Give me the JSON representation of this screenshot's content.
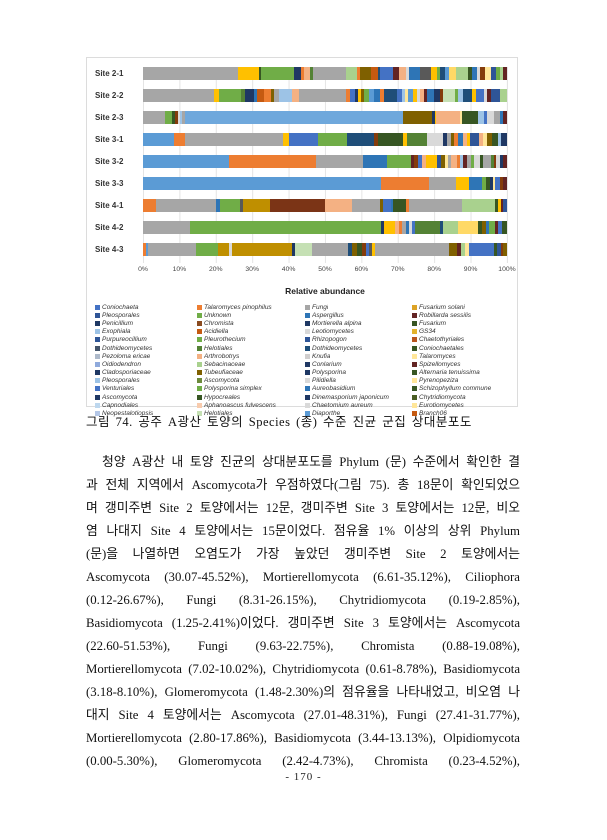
{
  "figure": {
    "caption": "그림 74. 공주 A광산 토양의 Species (종) 수준 진균 군집 상대분포도"
  },
  "chart_data": {
    "type": "bar",
    "orientation": "horizontal-stacked",
    "title": "",
    "xlabel": "Relative abundance",
    "ylabel": "",
    "xlim": [
      "0%",
      "100%"
    ],
    "grid": true,
    "x_ticks": [
      "0%",
      "10%",
      "20%",
      "30%",
      "40%",
      "50%",
      "60%",
      "70%",
      "80%",
      "90%",
      "100%"
    ],
    "categories": [
      "Site 2-1",
      "Site 2-2",
      "Site 2-3",
      "Site 3-1",
      "Site 3-2",
      "Site 3-3",
      "Site 4-1",
      "Site 4-2",
      "Site 4-3"
    ],
    "bars": [
      [
        [
          "#A6A6A6",
          26
        ],
        [
          "#FFC000",
          6
        ],
        [
          "#375623",
          0.5
        ],
        [
          "#70AD47",
          9
        ],
        [
          "#1F3864",
          2
        ],
        [
          "#ED7D31",
          0.7
        ],
        [
          "#F4B183",
          1.8
        ],
        [
          "#548235",
          0.7
        ],
        [
          "#A6A6A6",
          9
        ],
        [
          "#A9D18E",
          3
        ],
        [
          "#ED7D31",
          1
        ],
        [
          "#7F6000",
          2.8
        ],
        [
          "#C55A11",
          2
        ],
        [
          "#1F4E79",
          0.7
        ],
        [
          "#4472C4",
          3.5
        ],
        [
          "#632423",
          1.5
        ],
        [
          "#F4B183",
          2
        ],
        [
          "#D9D9D9",
          0.8
        ],
        [
          "#2E75B6",
          3.2
        ],
        [
          "#595959",
          3
        ],
        [
          "#FFC000",
          1.5
        ],
        [
          "#70AD47",
          1
        ],
        [
          "#1F4E79",
          1.2
        ],
        [
          "#5B9BD5",
          1.2
        ],
        [
          "#FFD966",
          1.8
        ],
        [
          "#A9D18E",
          3.5
        ],
        [
          "#375623",
          1
        ],
        [
          "#2E75B6",
          1.3
        ],
        [
          "#D9D9D9",
          0.8
        ],
        [
          "#843C0C",
          1.5
        ],
        [
          "#FFE699",
          1.5
        ],
        [
          "#2F5597",
          1.5
        ],
        [
          "#70AD47",
          1
        ],
        [
          "#A9D18E",
          0.8
        ],
        [
          "#632423",
          1.2
        ]
      ],
      [
        [
          "#A6A6A6",
          19.5
        ],
        [
          "#FFC000",
          1.5
        ],
        [
          "#70AD47",
          6
        ],
        [
          "#548235",
          1
        ],
        [
          "#1F3864",
          2.5
        ],
        [
          "#2E75B6",
          0.8
        ],
        [
          "#C55A11",
          2
        ],
        [
          "#ED7D31",
          2
        ],
        [
          "#7F6000",
          0.7
        ],
        [
          "#A6A6A6",
          1.3
        ],
        [
          "#9DC3E6",
          3.5
        ],
        [
          "#F4B183",
          2
        ],
        [
          "#A6A6A6",
          13
        ],
        [
          "#ED7D31",
          1.2
        ],
        [
          "#4472C4",
          1.2
        ],
        [
          "#1F3864",
          0.8
        ],
        [
          "#FFC000",
          0.8
        ],
        [
          "#7F6000",
          1
        ],
        [
          "#70AD47",
          1.2
        ],
        [
          "#5B9BD5",
          1.4
        ],
        [
          "#2E75B6",
          1.6
        ],
        [
          "#ED7D31",
          1.2
        ],
        [
          "#1F4E79",
          3.5
        ],
        [
          "#4472C4",
          1.4
        ],
        [
          "#9DC3E6",
          0.8
        ],
        [
          "#FFE699",
          1
        ],
        [
          "#5B9BD5",
          1.2
        ],
        [
          "#FFC000",
          1.2
        ],
        [
          "#D9D9D9",
          0.8
        ],
        [
          "#F4B183",
          1
        ],
        [
          "#632423",
          0.8
        ],
        [
          "#2E75B6",
          2
        ],
        [
          "#1F3864",
          1.6
        ],
        [
          "#843C0C",
          0.8
        ],
        [
          "#C5E0B4",
          3.5
        ],
        [
          "#70AD47",
          0.8
        ],
        [
          "#9DC3E6",
          1.4
        ],
        [
          "#1F4E79",
          2.4
        ],
        [
          "#FFC000",
          1
        ],
        [
          "#4472C4",
          2.2
        ],
        [
          "#D9D9D9",
          0.9
        ],
        [
          "#632423",
          1
        ],
        [
          "#2F5597",
          2.5
        ],
        [
          "#A9D18E",
          2
        ]
      ],
      [
        [
          "#A6A6A6",
          6
        ],
        [
          "#70AD47",
          2
        ],
        [
          "#375623",
          0.8
        ],
        [
          "#843C0C",
          0.7
        ],
        [
          "#D9D9D9",
          0.7
        ],
        [
          "#9DC3E6",
          0.5
        ],
        [
          "#A6A6A6",
          0.8
        ],
        [
          "#6FA8DC",
          60
        ],
        [
          "#7F6000",
          8
        ],
        [
          "#1F3864",
          0.6
        ],
        [
          "#FFC000",
          0.4
        ],
        [
          "#F4B183",
          6.5
        ],
        [
          "#FFE699",
          0.6
        ],
        [
          "#375623",
          4.5
        ],
        [
          "#9DC3E6",
          1.6
        ],
        [
          "#4472C4",
          0.8
        ],
        [
          "#D9D9D9",
          2
        ],
        [
          "#A6A6A6",
          1.5
        ],
        [
          "#2E75B6",
          1
        ],
        [
          "#632423",
          1
        ]
      ],
      [
        [
          "#5B9BD5",
          8.5
        ],
        [
          "#ED7D31",
          3
        ],
        [
          "#A6A6A6",
          27
        ],
        [
          "#FFC000",
          1.5
        ],
        [
          "#4472C4",
          8
        ],
        [
          "#70AD47",
          8
        ],
        [
          "#1F4E79",
          7.5
        ],
        [
          "#843C0C",
          1
        ],
        [
          "#375623",
          7
        ],
        [
          "#FFC000",
          1
        ],
        [
          "#548235",
          5.5
        ],
        [
          "#D9D9D9",
          4.5
        ],
        [
          "#1F3864",
          1
        ],
        [
          "#A6A6A6",
          1
        ],
        [
          "#7F6000",
          1
        ],
        [
          "#ED7D31",
          1
        ],
        [
          "#2E75B6",
          1.5
        ],
        [
          "#F4B183",
          1
        ],
        [
          "#FFC000",
          0.8
        ],
        [
          "#2F5597",
          2.5
        ],
        [
          "#F4B183",
          1.2
        ],
        [
          "#FFE699",
          1
        ],
        [
          "#7F6000",
          1.5
        ],
        [
          "#375623",
          1.5
        ],
        [
          "#9DC3E6",
          0.8
        ],
        [
          "#1F3864",
          1.7
        ]
      ],
      [
        [
          "#5B9BD5",
          23.5
        ],
        [
          "#ED7D31",
          24
        ],
        [
          "#A6A6A6",
          13
        ],
        [
          "#2E75B6",
          6.5
        ],
        [
          "#70AD47",
          6.5
        ],
        [
          "#632423",
          1
        ],
        [
          "#843C0C",
          1
        ],
        [
          "#4472C4",
          1.2
        ],
        [
          "#F4B183",
          1
        ],
        [
          "#FFC000",
          3
        ],
        [
          "#2F5597",
          1.2
        ],
        [
          "#7F6000",
          1
        ],
        [
          "#FFE699",
          0.8
        ],
        [
          "#A6A6A6",
          1
        ],
        [
          "#F4B183",
          1.5
        ],
        [
          "#ED7D31",
          0.8
        ],
        [
          "#9DC3E6",
          0.8
        ],
        [
          "#632423",
          1.2
        ],
        [
          "#A6A6A6",
          1
        ],
        [
          "#70AD47",
          1
        ],
        [
          "#D9D9D9",
          1.5
        ],
        [
          "#375623",
          1
        ],
        [
          "#A6A6A6",
          2
        ],
        [
          "#548235",
          0.8
        ],
        [
          "#843C0C",
          0.7
        ],
        [
          "#D9D9D9",
          1
        ],
        [
          "#1F3864",
          1
        ],
        [
          "#632423",
          1
        ]
      ],
      [
        [
          "#5B9BD5",
          65.5
        ],
        [
          "#ED7D31",
          13
        ],
        [
          "#A6A6A6",
          7.5
        ],
        [
          "#FFC000",
          3.5
        ],
        [
          "#2E75B6",
          3.5
        ],
        [
          "#70AD47",
          1.2
        ],
        [
          "#375623",
          1
        ],
        [
          "#1F3864",
          1
        ],
        [
          "#FFE699",
          0.6
        ],
        [
          "#4472C4",
          1.2
        ],
        [
          "#843C0C",
          1
        ],
        [
          "#632423",
          1
        ]
      ],
      [
        [
          "#ED7D31",
          3.5
        ],
        [
          "#A6A6A6",
          16.5
        ],
        [
          "#2E75B6",
          1.2
        ],
        [
          "#70AD47",
          5.5
        ],
        [
          "#595959",
          0.8
        ],
        [
          "#BF8F00",
          7.5
        ],
        [
          "#7B3416",
          15
        ],
        [
          "#F4B183",
          7.5
        ],
        [
          "#A6A6A6",
          7.5
        ],
        [
          "#7F6000",
          1
        ],
        [
          "#4472C4",
          2
        ],
        [
          "#2E75B6",
          0.8
        ],
        [
          "#375623",
          3.5
        ],
        [
          "#ED7D31",
          0.8
        ],
        [
          "#A6A6A6",
          14.5
        ],
        [
          "#A9D18E",
          9
        ],
        [
          "#375623",
          0.9
        ],
        [
          "#FFC000",
          0.8
        ],
        [
          "#632423",
          0.7
        ],
        [
          "#2F5597",
          1
        ]
      ],
      [
        [
          "#A6A6A6",
          13
        ],
        [
          "#70AD47",
          52.5
        ],
        [
          "#1F3864",
          0.8
        ],
        [
          "#FFC000",
          3
        ],
        [
          "#F4B183",
          1
        ],
        [
          "#ED7D31",
          0.8
        ],
        [
          "#A6A6A6",
          1.2
        ],
        [
          "#2E75B6",
          0.8
        ],
        [
          "#D9D9D9",
          0.8
        ],
        [
          "#4472C4",
          0.8
        ],
        [
          "#548235",
          7
        ],
        [
          "#1F4E79",
          0.8
        ],
        [
          "#A9D18E",
          4
        ],
        [
          "#FFD966",
          5.5
        ],
        [
          "#375623",
          1.2
        ],
        [
          "#7F6000",
          0.9
        ],
        [
          "#2E75B6",
          1
        ],
        [
          "#70AD47",
          1.5
        ],
        [
          "#632423",
          0.9
        ],
        [
          "#4472C4",
          1.2
        ],
        [
          "#375623",
          1.3
        ]
      ],
      [
        [
          "#ED7D31",
          0.8
        ],
        [
          "#5B9BD5",
          0.7
        ],
        [
          "#A6A6A6",
          13
        ],
        [
          "#70AD47",
          6
        ],
        [
          "#BF8F00",
          3
        ],
        [
          "#D9D9D9",
          1
        ],
        [
          "#BF8F00",
          16.5
        ],
        [
          "#1F3864",
          0.8
        ],
        [
          "#C5E0B4",
          4.5
        ],
        [
          "#A6A6A6",
          10
        ],
        [
          "#1F4E79",
          1
        ],
        [
          "#7F6000",
          1.5
        ],
        [
          "#375623",
          1.5
        ],
        [
          "#843C0C",
          1
        ],
        [
          "#4472C4",
          0.8
        ],
        [
          "#595959",
          0.9
        ],
        [
          "#FFC000",
          0.7
        ],
        [
          "#A6A6A6",
          20.5
        ],
        [
          "#7F6000",
          2.2
        ],
        [
          "#632423",
          0.9
        ],
        [
          "#A9D18E",
          1.2
        ],
        [
          "#FFE699",
          1
        ],
        [
          "#4472C4",
          7
        ],
        [
          "#375623",
          0.8
        ],
        [
          "#2F5597",
          1
        ],
        [
          "#843C0C",
          0.7
        ],
        [
          "#7F6000",
          1
        ]
      ]
    ],
    "legend_position": "bottom",
    "legend_columns": [
      [
        {
          "label": "Coniochaeta",
          "color": "#4472C4"
        },
        {
          "label": "Pleosporales",
          "color": "#2F5597"
        },
        {
          "label": "Penicillium",
          "color": "#1F3864"
        },
        {
          "label": "Exophiala",
          "color": "#9DC3E6"
        },
        {
          "label": "Purpureocillium",
          "color": "#2E5597"
        },
        {
          "label": "Dothideomycetes",
          "color": "#44546A"
        },
        {
          "label": "Pezoloma ericae",
          "color": "#ADB9CA"
        },
        {
          "label": "Oidiodendron",
          "color": "#8FAADC"
        },
        {
          "label": "Cladosporiaceae",
          "color": "#1F3864"
        },
        {
          "label": "Pleosporales",
          "color": "#9DC3E6"
        },
        {
          "label": "Venturiales",
          "color": "#4472C4"
        },
        {
          "label": "Ascomycota",
          "color": "#203864"
        },
        {
          "label": "Capnodiales",
          "color": "#BDD7EE"
        },
        {
          "label": "Neopestalotiopsis",
          "color": "#B4C7E7"
        }
      ],
      [
        {
          "label": "Talaromyces pinophilus",
          "color": "#ED7D31"
        },
        {
          "label": "Unknown",
          "color": "#70AD47"
        },
        {
          "label": "Chromista",
          "color": "#8A4B20"
        },
        {
          "label": "Acidiella",
          "color": "#C55A11"
        },
        {
          "label": "Pleurothecium",
          "color": "#70AD47"
        },
        {
          "label": "Helotiales",
          "color": "#548235"
        },
        {
          "label": "Arthrobotrys",
          "color": "#F4B183"
        },
        {
          "label": "Sebacinaceae",
          "color": "#A9D18E"
        },
        {
          "label": "Tubeufiaceae",
          "color": "#7F6000"
        },
        {
          "label": "Ascomycota",
          "color": "#6C8A3B"
        },
        {
          "label": "Polysporina simplex",
          "color": "#70AD47"
        },
        {
          "label": "Hypocreales",
          "color": "#375623"
        },
        {
          "label": "Aphanoascus fulvescens",
          "color": "#F8CBAD"
        },
        {
          "label": "Helotiales",
          "color": "#C5E0B4"
        }
      ],
      [
        {
          "label": "Fungi",
          "color": "#A6A6A6"
        },
        {
          "label": "Aspergillus",
          "color": "#2E75B6"
        },
        {
          "label": "Mortierella alpina",
          "color": "#1F3864"
        },
        {
          "label": "Leotiomycetes",
          "color": "#D9D9D9"
        },
        {
          "label": "Rhizopogon",
          "color": "#2F5597"
        },
        {
          "label": "Dothideomycetes",
          "color": "#1F4E79"
        },
        {
          "label": "Knufia",
          "color": "#D0CECE"
        },
        {
          "label": "Conlarium",
          "color": "#203864"
        },
        {
          "label": "Polysporina",
          "color": "#1F3864"
        },
        {
          "label": "Pilidiella",
          "color": "#D9D9D9"
        },
        {
          "label": "Aureobasidium",
          "color": "#2E75B6"
        },
        {
          "label": "Dinemasporium japonicum",
          "color": "#1F3864"
        },
        {
          "label": "Chaetomium aureum",
          "color": "#D9D9D9"
        },
        {
          "label": "Diaporthe",
          "color": "#5B9BD5"
        }
      ],
      [
        {
          "label": "Fusarium solani",
          "color": "#DDA325"
        },
        {
          "label": "Robillarda sessilis",
          "color": "#632423"
        },
        {
          "label": "Fusarium",
          "color": "#375623"
        },
        {
          "label": "GS34",
          "color": "#E3B32B"
        },
        {
          "label": "Chaetothyriales",
          "color": "#B8551E"
        },
        {
          "label": "Coniochaetales",
          "color": "#375623"
        },
        {
          "label": "Talaromyces",
          "color": "#FFE699"
        },
        {
          "label": "Spizellomyces",
          "color": "#632423"
        },
        {
          "label": "Alternaria tenuissima",
          "color": "#375623"
        },
        {
          "label": "Pyrenopeziza",
          "color": "#FFE699"
        },
        {
          "label": "Schizophyllum commune",
          "color": "#375623"
        },
        {
          "label": "Chytridiomycota",
          "color": "#4A5E23"
        },
        {
          "label": "Eurotiomycetes",
          "color": "#FFE699"
        },
        {
          "label": "Branch06",
          "color": "#C55A11"
        }
      ]
    ]
  },
  "body": {
    "lines": [
      "청양 A광산 내 토양 진균의 상대분포도를 Phylum (문) 수준에서 확인한 결",
      "과 전체 지역에서 Ascomycota가 우점하였다(그림 75). 총 18문이 확인되었으",
      "며 갱미주변 Site 2 토양에서는 12문, 갱미주변 Site 3 토양에서는 12문, 비오",
      "염 나대지 Site 4 토양에서는 15문이었다. 점유율 1% 이상의 상위 Phylum",
      "(문)을 나열하면 오염도가 가장 높았던 갱미주변 Site 2 토양에서는",
      "Ascomycota (30.07-45.52%), Mortierellomycota (6.61-35.12%), Ciliophora",
      "(0.12-26.67%), Fungi (8.31-26.15%), Chytridiomycota (0.19-2.85%),",
      "Basidiomycota (1.25-2.41%)이었다. 갱미주변 Site 3 토양에서는 Ascomycota",
      "(22.60-51.53%), Fungi (9.63-22.75%), Chromista (0.88-19.08%),",
      "Mortierellomycota (7.02-10.02%), Chytridiomycota (0.61-8.78%), Basidiomycota",
      "(3.18-8.10%), Glomeromycota (1.48-2.30%)의 점유율을 나타내었고, 비오염 나",
      "대지 Site 4 토양에서는 Ascomycota (27.01-48.31%), Fungi (27.41-31.77%),",
      "Mortierellomycota (2.80-17.86%), Basidiomycota (3.44-13.13%), Olpidiomycota",
      "(0.00-5.30%), Glomeromycota (2.42-4.73%), Chromista (0.23-4.52%),"
    ]
  },
  "footer": {
    "page_number": "- 170 -"
  }
}
